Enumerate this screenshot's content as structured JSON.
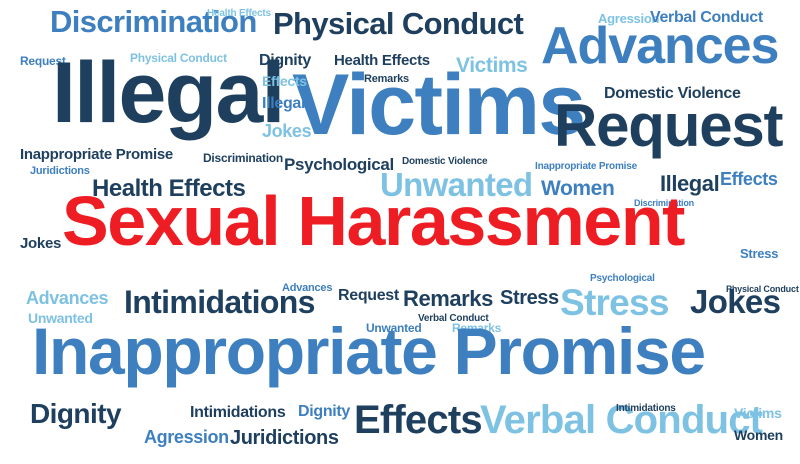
{
  "colors": {
    "navy": "#1e3f5e",
    "blue": "#3d7fbf",
    "light_blue": "#7ec2e3",
    "red": "#ee1d24",
    "background": "#ffffff"
  },
  "words": {
    "sexual_harassment": "Sexual Harassment",
    "inappropriate_promise_big": "Inappropriate Promise",
    "illegal_big": "Illegal",
    "victims_big": "Victims",
    "advances_big": "Advances",
    "request_big": "Request",
    "discrimination_top": "Discrimination",
    "physical_conduct_top": "Physical Conduct",
    "health_effects_tiny": "Health Effects",
    "agression_top": "Agression",
    "verbal_conduct_top": "Verbal Conduct",
    "request_small": "Request",
    "physical_conduct_small": "Physical Conduct",
    "dignity_small": "Dignity",
    "health_effects_small": "Health Effects",
    "remarks_small": "Remarks",
    "victims_small": "Victims",
    "effects_vert": "Effects",
    "illegal_small": "Illegal",
    "jokes_small": "Jokes",
    "domestic_violence": "Domestic Violence",
    "inappropriate_promise_small": "Inappropriate Promise",
    "discrimination_small": "Discrimination",
    "psychological": "Psychological",
    "domestic_violence_tiny": "Domestic Violence",
    "inappropriate_promise_tiny": "Inappropriate Promise",
    "juridictions_small": "Juridictions",
    "health_effects_med": "Health Effects",
    "unwanted_med": "Unwanted",
    "women_med": "Women",
    "illegal_med": "Illegal",
    "effects_med": "Effects",
    "discrimination_tiny": "Discrimination",
    "jokes_left": "Jokes",
    "stress_right": "Stress",
    "advances_small": "Advances",
    "unwanted_small": "Unwanted",
    "intimidations": "Intimidations",
    "advances_tiny": "Advances",
    "request_mid": "Request",
    "remarks_mid": "Remarks",
    "stress_mid": "Stress",
    "psychological_tiny": "Psychological",
    "stress_big": "Stress",
    "jokes_right": "Jokes",
    "physical_conduct_tiny": "Physical Conduct",
    "verbal_conduct_tiny": "Verbal Conduct",
    "unwanted_tiny": "Unwanted",
    "remarks_tiny": "Remarks",
    "dignity_bottom": "Dignity",
    "intimidations_small": "Intimidations",
    "dignity_tiny": "Dignity",
    "effects_big": "Effects",
    "verbal_conduct_big": "Verbal Conduct",
    "intimidations_tiny": "Intimidations",
    "agression_bottom": "Agression",
    "juridictions_bottom": "Juridictions",
    "victims_bottom": "Victims",
    "women_bottom": "Women"
  }
}
